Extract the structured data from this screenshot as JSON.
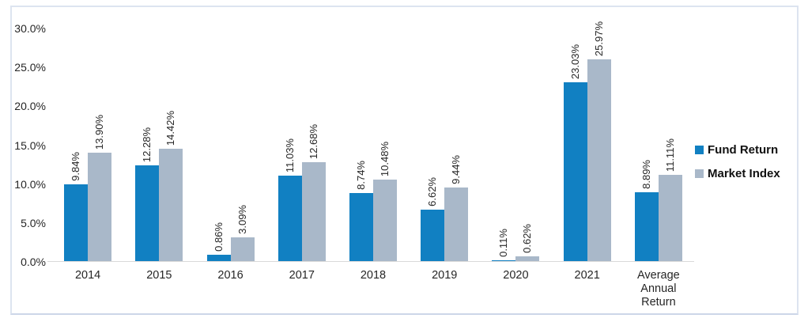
{
  "chart_data": {
    "type": "bar",
    "title": "",
    "categories": [
      "2014",
      "2015",
      "2016",
      "2017",
      "2018",
      "2019",
      "2020",
      "2021",
      "Average Annual Return"
    ],
    "series": [
      {
        "name": "Fund Return",
        "color": "#1180c2",
        "values": [
          9.84,
          12.28,
          0.86,
          11.03,
          8.74,
          6.62,
          0.11,
          23.03,
          8.89
        ],
        "labels": [
          "9.84%",
          "12.28%",
          "0.86%",
          "11.03%",
          "8.74%",
          "6.62%",
          "0.11%",
          "23.03%",
          "8.89%"
        ]
      },
      {
        "name": "Market Index",
        "color": "#a9b8c9",
        "values": [
          13.9,
          14.42,
          3.09,
          12.68,
          10.48,
          9.44,
          0.62,
          25.97,
          11.11
        ],
        "labels": [
          "13.90%",
          "14.42%",
          "3.09%",
          "12.68%",
          "10.48%",
          "9.44%",
          "0.62%",
          "25.97%",
          "11.11%"
        ]
      }
    ],
    "y_ticks": [
      "30.0%",
      "25.0%",
      "20.0%",
      "15.0%",
      "10.0%",
      "5.0%",
      "0.0%"
    ],
    "ylim": [
      0,
      30
    ],
    "y_tick_step": 5,
    "grid": false,
    "legend_position": "right",
    "data_labels_rotated": true,
    "axis_line_color": "#d9d9d9"
  }
}
